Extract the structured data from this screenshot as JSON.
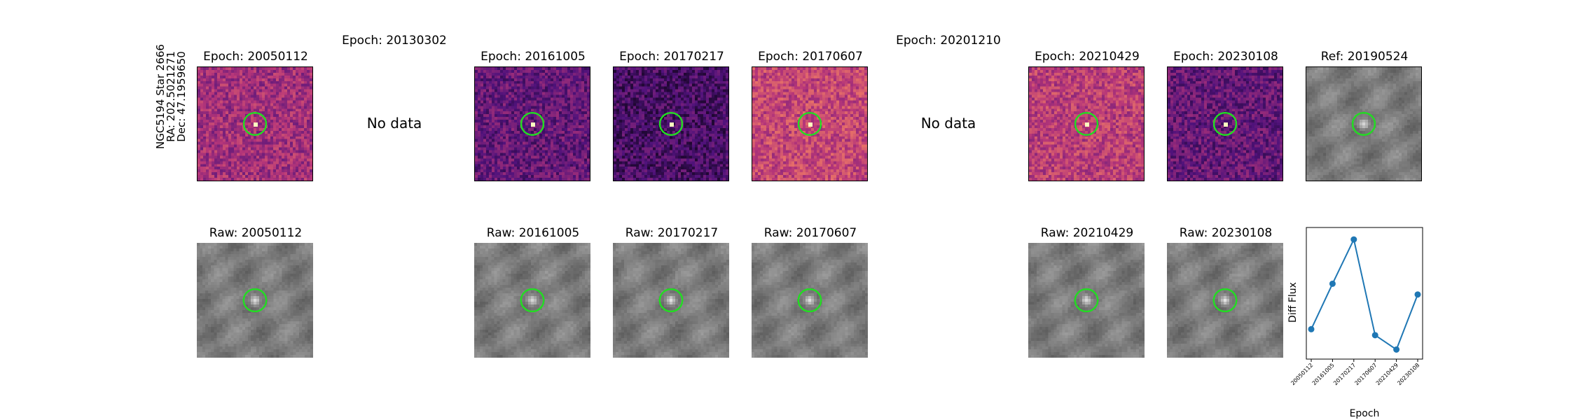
{
  "star": {
    "name": "NGC5194 Star 2666",
    "ra": "RA: 202.5021271",
    "dec": "Dec: 47.1959650"
  },
  "diff_row": [
    {
      "title": "Epoch: 20050112",
      "has_data": true
    },
    {
      "title": "Epoch: 20130302",
      "has_data": false,
      "no_data_text": "No data"
    },
    {
      "title": "Epoch: 20161005",
      "has_data": true
    },
    {
      "title": "Epoch: 20170217",
      "has_data": true
    },
    {
      "title": "Epoch: 20170607",
      "has_data": true
    },
    {
      "title": "Epoch: 20201210",
      "has_data": false,
      "no_data_text": "No data"
    },
    {
      "title": "Epoch: 20210429",
      "has_data": true
    },
    {
      "title": "Epoch: 20230108",
      "has_data": true
    },
    {
      "title": "Ref: 20190524",
      "has_data": true
    }
  ],
  "raw_row": [
    {
      "title": "Raw: 20050112"
    },
    {
      "title": "Raw: 20161005"
    },
    {
      "title": "Raw: 20170217"
    },
    {
      "title": "Raw: 20170607"
    },
    {
      "title": "Raw: 20210429"
    },
    {
      "title": "Raw: 20230108"
    }
  ],
  "colors": {
    "marker_circle": "#22dd22",
    "line_series": "#1f77b4",
    "colormap": "magma",
    "raw_colormap": "gray"
  },
  "chart_data": {
    "type": "line",
    "title": "",
    "xlabel": "Epoch",
    "ylabel": "Diff Flux",
    "categories": [
      "20050112",
      "20161005",
      "20170217",
      "20170607",
      "20210429",
      "20230108"
    ],
    "values": [
      0.25,
      0.63,
      1.0,
      0.2,
      0.08,
      0.54
    ],
    "ylim": [
      0,
      1.1
    ],
    "y_ticks_shown": false,
    "grid": false
  }
}
